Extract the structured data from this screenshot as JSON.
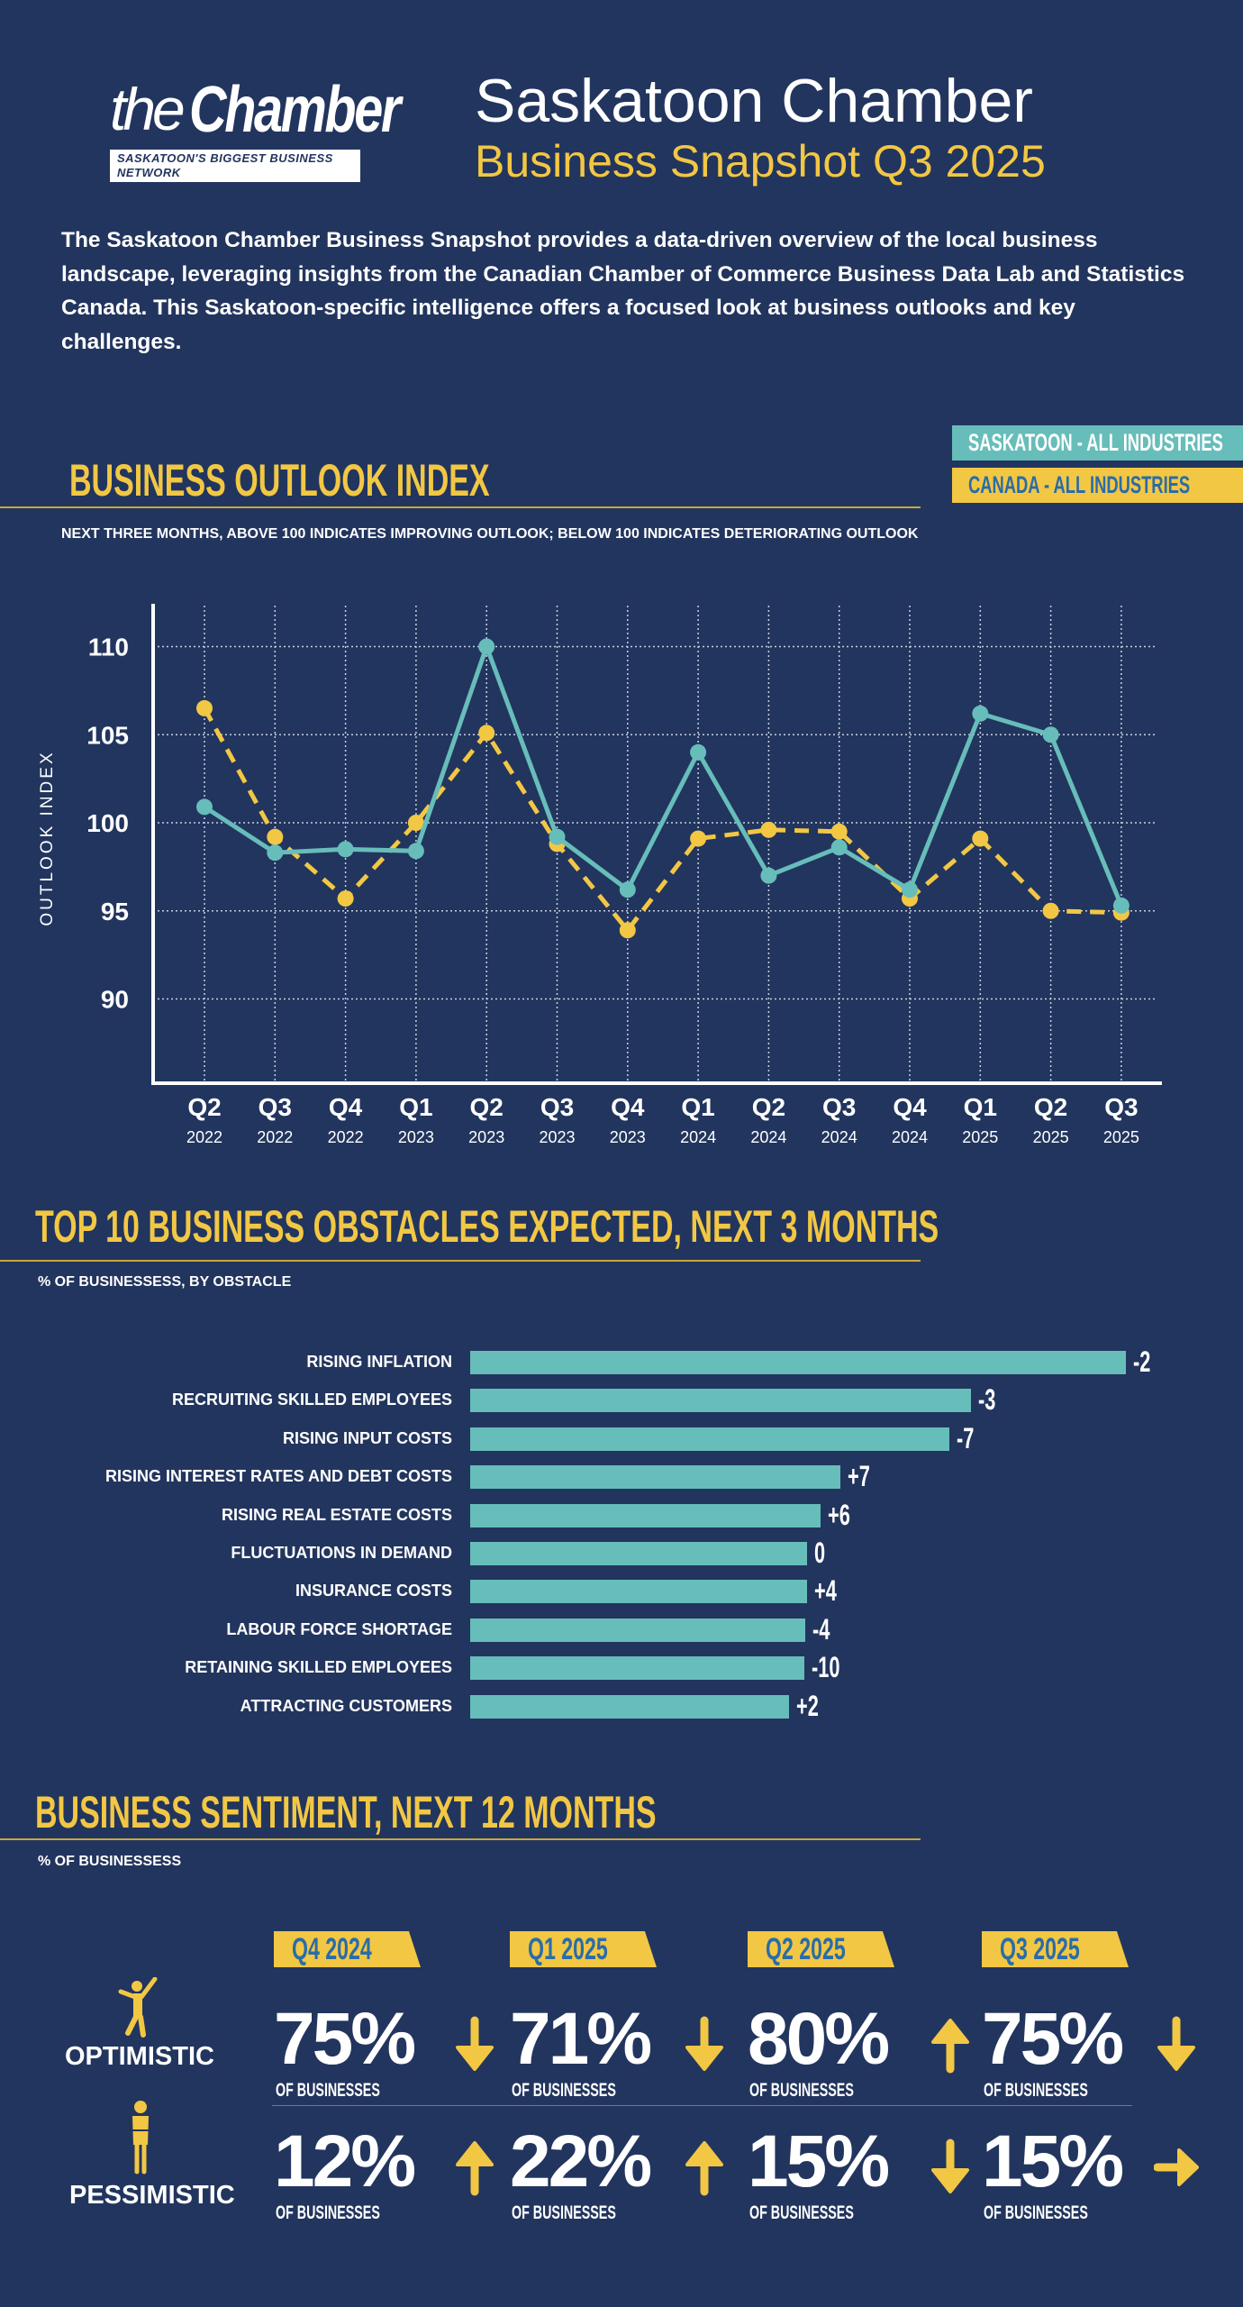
{
  "header": {
    "logo_text": "theChamber",
    "logo_tagline": "SASKATOON'S BIGGEST BUSINESS NETWORK",
    "title": "Saskatoon Chamber",
    "subtitle": "Business Snapshot Q3 2025",
    "intro": "The Saskatoon Chamber Business Snapshot provides a data-driven overview of the local business landscape, leveraging insights from the Canadian Chamber of Commerce Business Data Lab and Statistics Canada. This Saskatoon-specific intelligence offers a focused look at business outlooks and key challenges."
  },
  "colors": {
    "background": "#22355e",
    "saskatoon": "#67bdba",
    "canada": "#f2c744",
    "tag_text": "#2a6ca8"
  },
  "chart_data": [
    {
      "type": "line",
      "title": "BUSINESS OUTLOOK INDEX",
      "subtitle": "NEXT THREE MONTHS, ABOVE 100 INDICATES IMPROVING OUTLOOK; BELOW 100 INDICATES DETERIORATING OUTLOOK",
      "ylabel": "OUTLOOK INDEX",
      "ylim": [
        85,
        112
      ],
      "yticks": [
        "110",
        "105",
        "100",
        "95",
        "90"
      ],
      "grid": true,
      "legend_position": "top-right",
      "categories": [
        {
          "q": "Q2",
          "y": "2022"
        },
        {
          "q": "Q3",
          "y": "2022"
        },
        {
          "q": "Q4",
          "y": "2022"
        },
        {
          "q": "Q1",
          "y": "2023"
        },
        {
          "q": "Q2",
          "y": "2023"
        },
        {
          "q": "Q3",
          "y": "2023"
        },
        {
          "q": "Q4",
          "y": "2023"
        },
        {
          "q": "Q1",
          "y": "2024"
        },
        {
          "q": "Q2",
          "y": "2024"
        },
        {
          "q": "Q3",
          "y": "2024"
        },
        {
          "q": "Q4",
          "y": "2024"
        },
        {
          "q": "Q1",
          "y": "2025"
        },
        {
          "q": "Q2",
          "y": "2025"
        },
        {
          "q": "Q3",
          "y": "2025"
        }
      ],
      "series": [
        {
          "name": "SASKATOON - ALL INDUSTRIES",
          "color": "#67bdba",
          "style": "solid",
          "values": [
            100.9,
            98.3,
            98.5,
            98.4,
            110.0,
            99.2,
            96.2,
            104.0,
            97.0,
            98.6,
            96.2,
            106.2,
            105.0,
            95.3
          ]
        },
        {
          "name": "CANADA - ALL INDUSTRIES",
          "color": "#f2c744",
          "style": "dashed",
          "values": [
            106.5,
            99.2,
            95.7,
            100.0,
            105.1,
            98.8,
            93.9,
            99.1,
            99.6,
            99.5,
            95.7,
            99.1,
            95.0,
            94.9
          ]
        }
      ]
    },
    {
      "type": "bar",
      "orientation": "horizontal",
      "title": "TOP 10 BUSINESS OBSTACLES EXPECTED, NEXT 3 MONTHS",
      "subtitle": "% OF BUSINESSESS, BY OBSTACLE",
      "color": "#67bdba",
      "categories": [
        "RISING INFLATION",
        "RECRUITING SKILLED EMPLOYEES",
        "RISING INPUT COSTS",
        "RISING INTEREST RATES AND DEBT COSTS",
        "RISING REAL ESTATE COSTS",
        "FLUCTUATIONS IN DEMAND",
        "INSURANCE COSTS",
        "LABOUR FORCE SHORTAGE",
        "RETAINING SKILLED EMPLOYEES",
        "ATTRACTING CUSTOMERS"
      ],
      "values": [
        53,
        40.5,
        38.7,
        29.9,
        28.3,
        27.2,
        27.2,
        27.1,
        27.0,
        25.8
      ],
      "data_labels": [
        "-2",
        "-3",
        "-7",
        "+7",
        "+6",
        "0",
        "+4",
        "-4",
        "-10",
        "+2"
      ]
    }
  ],
  "sentiment": {
    "title": "BUSINESS SENTIMENT, NEXT 12 MONTHS",
    "subtitle": "% OF BUSINESSESS",
    "quarters": [
      "Q4 2024",
      "Q1 2025",
      "Q2 2025",
      "Q3 2025"
    ],
    "unit_label": "OF BUSINESSES",
    "rows": [
      {
        "label": "OPTIMISTIC",
        "icon": "cheering-person-icon",
        "values": [
          "75%",
          "71%",
          "80%",
          "75%"
        ],
        "trends": [
          "down",
          "down",
          "up",
          "down"
        ]
      },
      {
        "label": "PESSIMISTIC",
        "icon": "thinking-person-icon",
        "values": [
          "12%",
          "22%",
          "15%",
          "15%"
        ],
        "trends": [
          "up",
          "up",
          "down",
          "flat"
        ]
      }
    ]
  }
}
